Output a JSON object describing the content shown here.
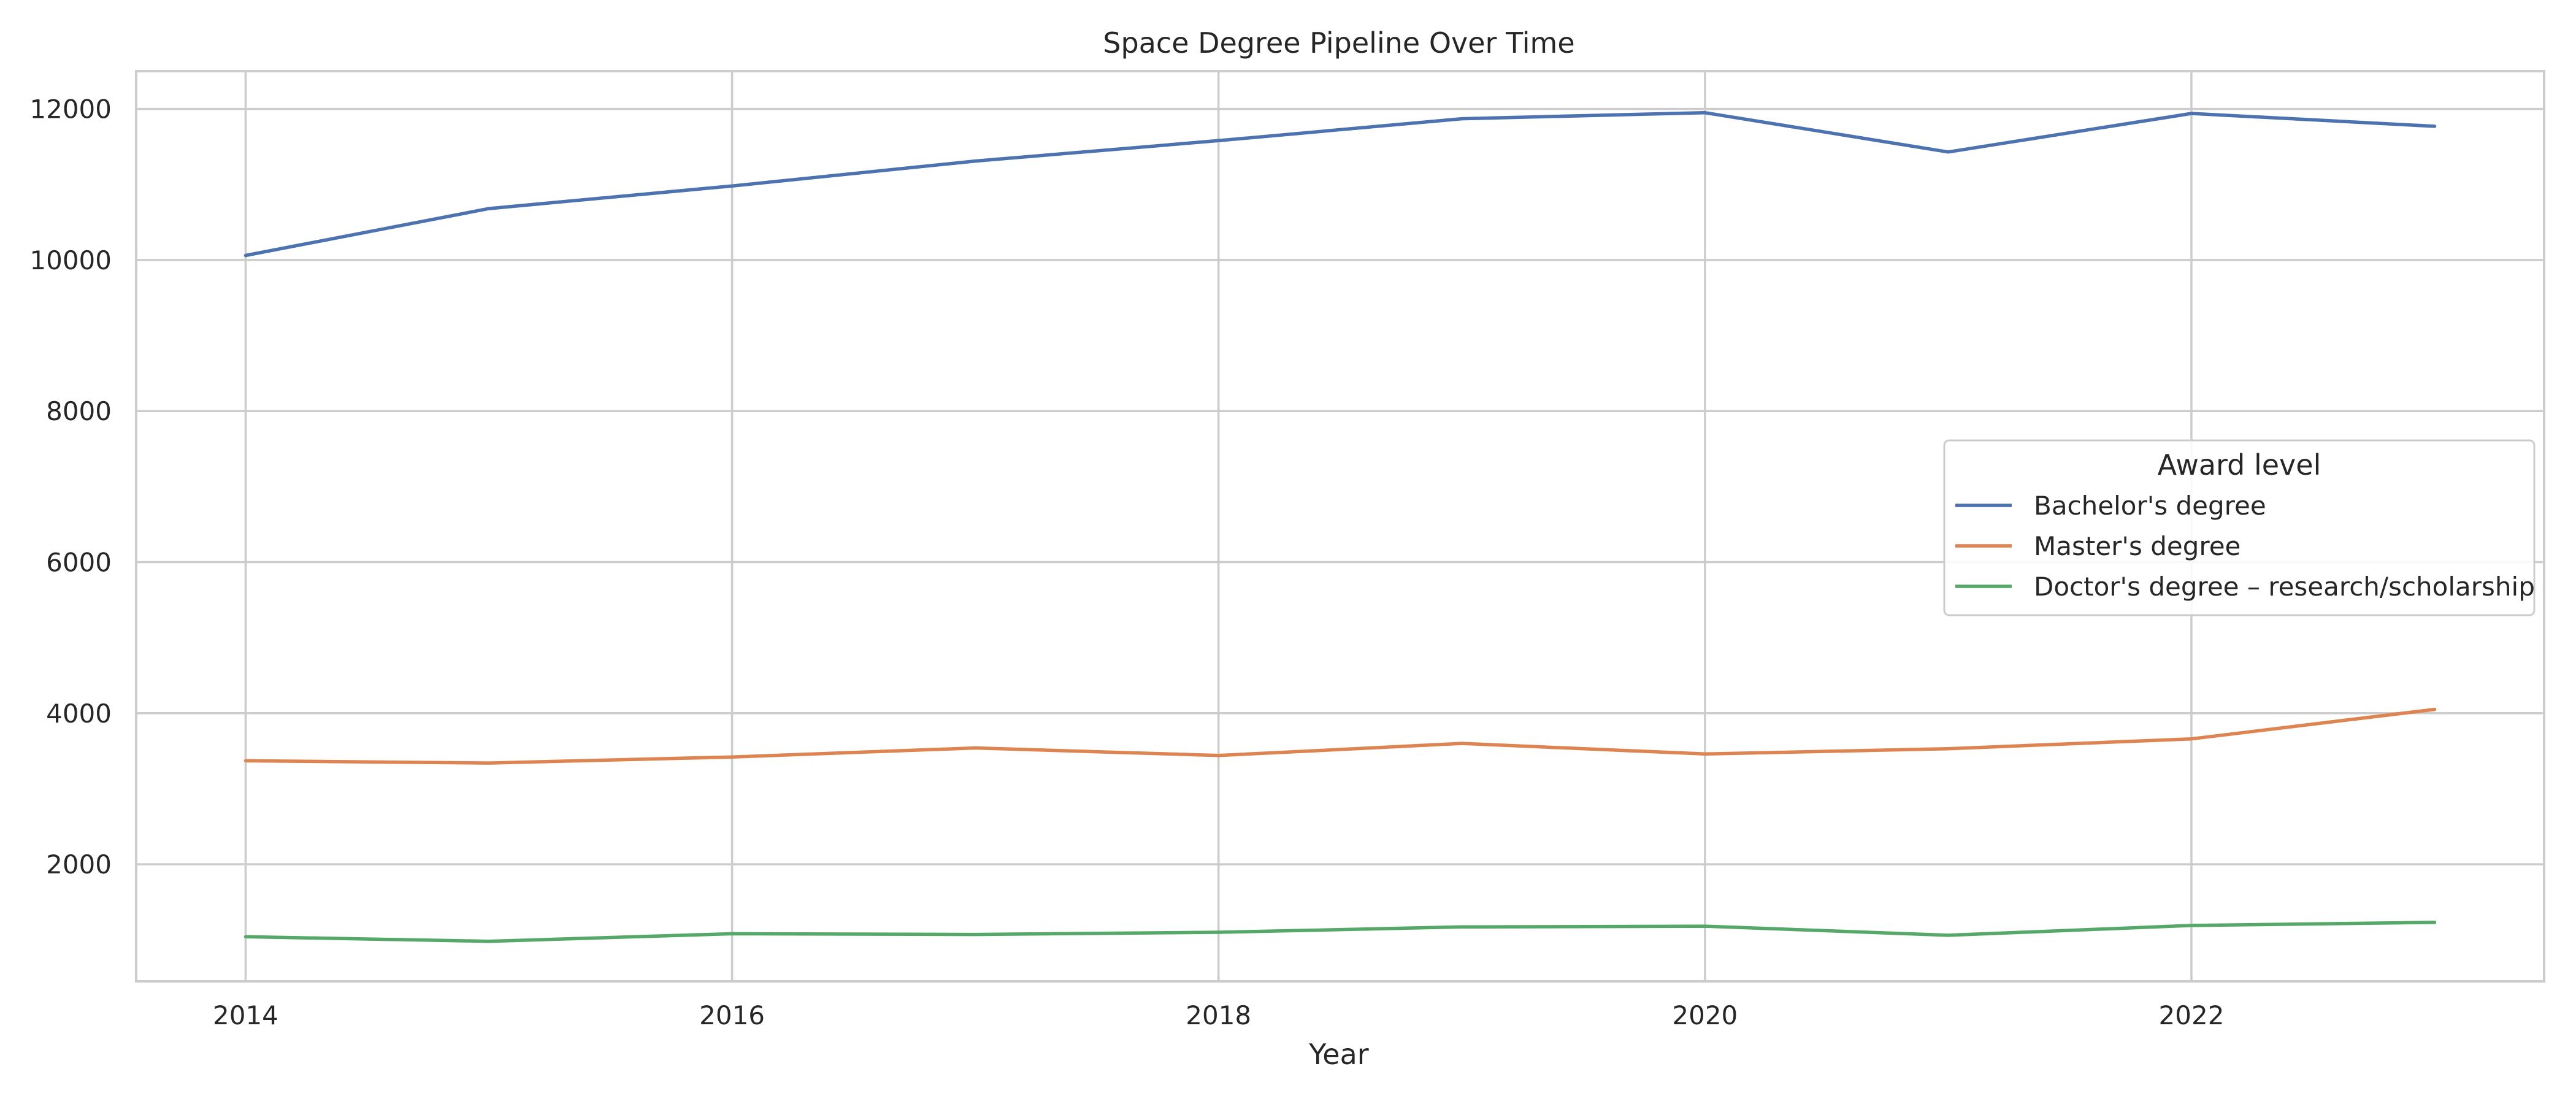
{
  "chart_data": {
    "type": "line",
    "title": "Space Degree Pipeline Over Time",
    "xlabel": "Year",
    "ylabel": "",
    "x": [
      2014,
      2015,
      2016,
      2017,
      2018,
      2019,
      2020,
      2021,
      2022,
      2023
    ],
    "xlim": [
      2013.55,
      2023.45
    ],
    "ylim": [
      450,
      12500
    ],
    "x_ticks": [
      2014,
      2016,
      2018,
      2020,
      2022
    ],
    "y_ticks": [
      2000,
      4000,
      6000,
      8000,
      10000,
      12000
    ],
    "grid": true,
    "legend": {
      "title": "Award level",
      "placement": "center-right"
    },
    "series": [
      {
        "name": "Bachelor's degree",
        "color": "#4c72b0",
        "values": [
          10060,
          10680,
          10980,
          11310,
          11580,
          11870,
          11950,
          11430,
          11940,
          11770
        ]
      },
      {
        "name": "Master's degree",
        "color": "#dd8452",
        "values": [
          3370,
          3340,
          3420,
          3540,
          3440,
          3600,
          3460,
          3530,
          3660,
          4050
        ]
      },
      {
        "name": "Doctor's degree – research/scholarship",
        "color": "#55a868",
        "values": [
          1040,
          980,
          1080,
          1070,
          1100,
          1170,
          1180,
          1060,
          1190,
          1230
        ]
      }
    ]
  },
  "colors": {
    "frame": "#cccccc",
    "grid": "#cccccc",
    "text": "#262626",
    "background": "#ffffff"
  }
}
